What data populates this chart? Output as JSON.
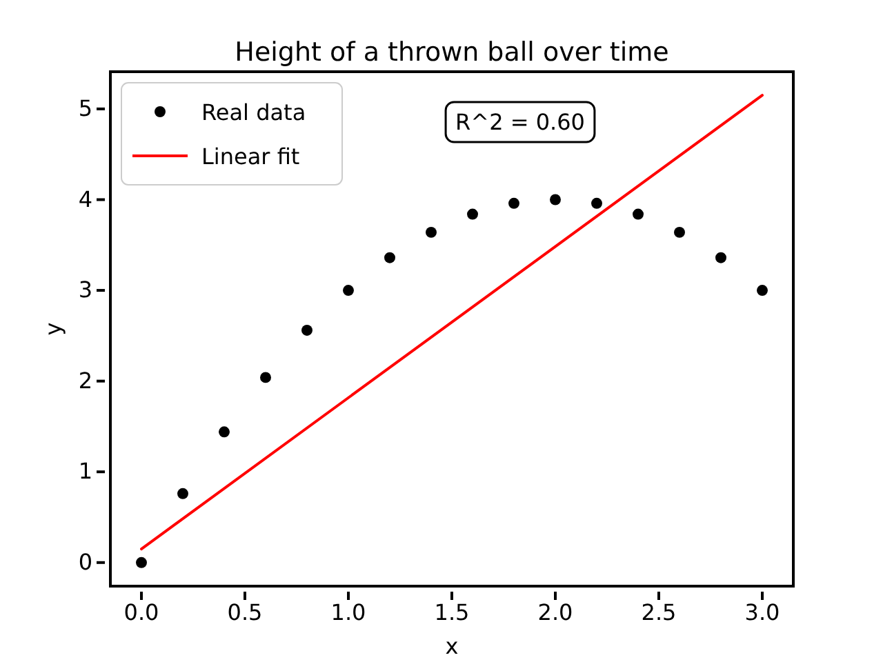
{
  "chart_data": {
    "type": "scatter",
    "title": "Height of a thrown ball over time",
    "xlabel": "x",
    "ylabel": "y",
    "xlim": [
      -0.15,
      3.15
    ],
    "ylim": [
      -0.26,
      5.41
    ],
    "xticks": [
      {
        "value": 0,
        "label": "0.0"
      },
      {
        "value": 0.5,
        "label": "0.5"
      },
      {
        "value": 1,
        "label": "1.0"
      },
      {
        "value": 1.5,
        "label": "1.5"
      },
      {
        "value": 2,
        "label": "2.0"
      },
      {
        "value": 2.5,
        "label": "2.5"
      },
      {
        "value": 3,
        "label": "3.0"
      }
    ],
    "yticks": [
      0,
      1,
      2,
      3,
      4,
      5
    ],
    "legend": "top left",
    "grid": false,
    "annotations": [
      "R^2 = 0.60"
    ],
    "series": [
      {
        "name": "Real data",
        "type": "scatter",
        "marker": "circle",
        "color": "#000000",
        "x": [
          0,
          0.2,
          0.4,
          0.6,
          0.8,
          1,
          1.2,
          1.4,
          1.6,
          1.8,
          2,
          2.2,
          2.4,
          2.6,
          2.8,
          3
        ],
        "values": [
          0,
          0.76,
          1.44,
          2.04,
          2.56,
          3,
          3.36,
          3.64,
          3.84,
          3.96,
          4,
          3.96,
          3.84,
          3.64,
          3.36,
          3
        ]
      },
      {
        "name": "Linear fit",
        "type": "line",
        "marker": "none",
        "color": "#ff0000",
        "x": [
          0,
          3
        ],
        "values": [
          0.15,
          5.15
        ]
      }
    ]
  }
}
